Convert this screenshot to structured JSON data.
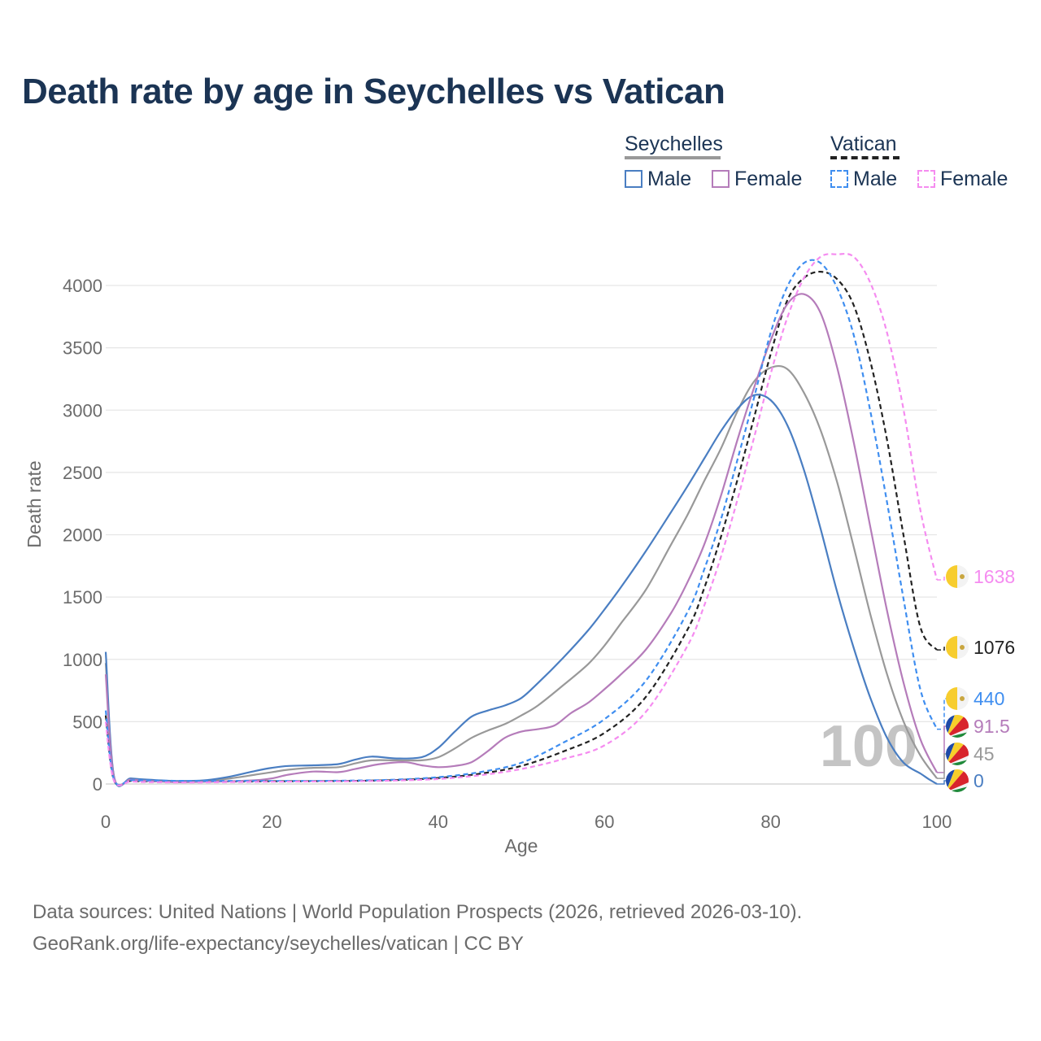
{
  "title": "Death rate by age in Seychelles vs Vatican",
  "legend": {
    "groups": [
      {
        "name": "Seychelles",
        "color": "#999999",
        "dash": "solid",
        "items": [
          {
            "label": "Male",
            "color": "#4a7ec2"
          },
          {
            "label": "Female",
            "color": "#b57cba"
          }
        ]
      },
      {
        "name": "Vatican",
        "color": "#222222",
        "dash": "dashed",
        "items": [
          {
            "label": "Male",
            "color": "#3f8ef0"
          },
          {
            "label": "Female",
            "color": "#f58cf0"
          }
        ]
      }
    ]
  },
  "chart_data": {
    "type": "line",
    "title": "Death rate by age in Seychelles vs Vatican",
    "xlabel": "Age",
    "ylabel": "Death rate",
    "xlim": [
      0,
      100
    ],
    "ylim": [
      0,
      4000
    ],
    "xticks": [
      0,
      20,
      40,
      60,
      80,
      100
    ],
    "yticks": [
      0,
      500,
      1000,
      1500,
      2000,
      2500,
      3000,
      3500,
      4000
    ],
    "grid": true,
    "watermark": "100",
    "series": [
      {
        "name": "Seychelles Male",
        "color": "#4a7ec2",
        "dash": "solid",
        "end_label": "0",
        "x": [
          0,
          1,
          3,
          5,
          8,
          10,
          12,
          15,
          18,
          20,
          22,
          25,
          28,
          30,
          32,
          35,
          38,
          40,
          42,
          44,
          46,
          48,
          50,
          52,
          55,
          58,
          60,
          62,
          65,
          68,
          70,
          72,
          74,
          76,
          78,
          80,
          82,
          84,
          86,
          88,
          90,
          92,
          94,
          96,
          98,
          99,
          100
        ],
        "y": [
          1060,
          60,
          45,
          35,
          25,
          25,
          30,
          60,
          105,
          130,
          145,
          150,
          160,
          195,
          220,
          205,
          215,
          290,
          420,
          540,
          590,
          630,
          690,
          810,
          1010,
          1230,
          1400,
          1580,
          1870,
          2180,
          2390,
          2610,
          2830,
          3010,
          3120,
          3080,
          2880,
          2520,
          2050,
          1540,
          1090,
          690,
          370,
          170,
          85,
          40,
          0
        ]
      },
      {
        "name": "Seychelles Female",
        "color": "#b57cba",
        "dash": "solid",
        "end_label": "91.5",
        "x": [
          0,
          1,
          3,
          5,
          8,
          10,
          12,
          15,
          18,
          20,
          22,
          25,
          28,
          30,
          33,
          36,
          38,
          40,
          42,
          44,
          46,
          48,
          50,
          52,
          54,
          56,
          58,
          60,
          62,
          65,
          68,
          70,
          72,
          74,
          76,
          78,
          80,
          82,
          84,
          86,
          88,
          90,
          92,
          94,
          96,
          98,
          100
        ],
        "y": [
          880,
          55,
          35,
          25,
          15,
          15,
          18,
          22,
          30,
          45,
          75,
          100,
          95,
          120,
          160,
          175,
          150,
          135,
          145,
          175,
          265,
          370,
          420,
          440,
          470,
          570,
          650,
          760,
          880,
          1080,
          1370,
          1620,
          1920,
          2310,
          2760,
          3180,
          3560,
          3850,
          3930,
          3780,
          3340,
          2740,
          2060,
          1390,
          810,
          360,
          92
        ]
      },
      {
        "name": "Vatican Male",
        "color": "#3f8ef0",
        "dash": "dashed",
        "end_label": "440",
        "x": [
          0,
          1,
          3,
          5,
          10,
          15,
          20,
          25,
          30,
          35,
          40,
          45,
          50,
          55,
          60,
          65,
          70,
          72,
          74,
          76,
          78,
          80,
          82,
          84,
          86,
          88,
          90,
          92,
          94,
          96,
          98,
          100
        ],
        "y": [
          590,
          35,
          30,
          28,
          25,
          25,
          25,
          25,
          28,
          35,
          55,
          95,
          170,
          330,
          520,
          830,
          1380,
          1720,
          2120,
          2600,
          3100,
          3620,
          3990,
          4180,
          4180,
          3980,
          3600,
          2990,
          2260,
          1480,
          760,
          440
        ]
      },
      {
        "name": "Vatican Female",
        "color": "#f58cf0",
        "dash": "dashed",
        "end_label": "1638",
        "x": [
          0,
          1,
          3,
          5,
          10,
          15,
          20,
          25,
          30,
          35,
          40,
          45,
          50,
          55,
          60,
          65,
          70,
          72,
          74,
          76,
          78,
          80,
          82,
          84,
          86,
          88,
          90,
          92,
          94,
          96,
          98,
          100
        ],
        "y": [
          500,
          25,
          20,
          15,
          12,
          15,
          18,
          20,
          22,
          28,
          40,
          70,
          120,
          200,
          310,
          580,
          1110,
          1430,
          1820,
          2280,
          2780,
          3290,
          3740,
          4060,
          4230,
          4250,
          4230,
          4020,
          3620,
          3000,
          2200,
          1638
        ]
      },
      {
        "name": "Seychelles Combined",
        "color": "#999999",
        "dash": "solid",
        "end_label": "45",
        "x": [
          0,
          1,
          3,
          5,
          8,
          10,
          12,
          15,
          18,
          20,
          22,
          25,
          28,
          30,
          32,
          35,
          38,
          40,
          42,
          44,
          46,
          48,
          50,
          52,
          55,
          58,
          60,
          62,
          65,
          68,
          70,
          72,
          74,
          76,
          78,
          80,
          82,
          84,
          86,
          88,
          90,
          92,
          94,
          96,
          98,
          100
        ],
        "y": [
          970,
          58,
          40,
          30,
          20,
          20,
          24,
          45,
          75,
          95,
          115,
          130,
          135,
          165,
          190,
          190,
          190,
          215,
          285,
          370,
          430,
          480,
          550,
          630,
          790,
          960,
          1110,
          1290,
          1560,
          1920,
          2160,
          2430,
          2690,
          2990,
          3230,
          3340,
          3330,
          3140,
          2840,
          2420,
          1900,
          1360,
          880,
          500,
          230,
          45
        ]
      },
      {
        "name": "Vatican Combined",
        "color": "#222222",
        "dash": "dashed",
        "end_label": "1076",
        "x": [
          0,
          1,
          3,
          5,
          10,
          15,
          20,
          25,
          30,
          35,
          40,
          45,
          50,
          55,
          60,
          65,
          70,
          72,
          74,
          76,
          78,
          80,
          82,
          84,
          86,
          88,
          90,
          92,
          94,
          96,
          98,
          100
        ],
        "y": [
          550,
          30,
          25,
          22,
          20,
          20,
          22,
          23,
          25,
          32,
          48,
          82,
          145,
          260,
          410,
          700,
          1240,
          1570,
          1980,
          2440,
          2940,
          3450,
          3880,
          4060,
          4110,
          4050,
          3840,
          3390,
          2760,
          1990,
          1260,
          1076
        ]
      }
    ],
    "end_labels": [
      {
        "text": "1638",
        "series": "Vatican Female",
        "flag": "vatican",
        "color": "#f58cf0"
      },
      {
        "text": "1076",
        "series": "Vatican Combined",
        "flag": "vatican",
        "color": "#222222"
      },
      {
        "text": "440",
        "series": "Vatican Male",
        "flag": "vatican",
        "color": "#3f8ef0"
      },
      {
        "text": "91.5",
        "series": "Seychelles Female",
        "flag": "seychelles",
        "color": "#b57cba"
      },
      {
        "text": "45",
        "series": "Seychelles Combined",
        "flag": "seychelles",
        "color": "#999999"
      },
      {
        "text": "0",
        "series": "Seychelles Male",
        "flag": "seychelles",
        "color": "#4a7ec2"
      }
    ]
  },
  "sources": {
    "line1": "Data sources: United Nations | World Population Prospects (2026, retrieved 2026-03-10).",
    "line2": "GeoRank.org/life-expectancy/seychelles/vatican | CC BY"
  }
}
